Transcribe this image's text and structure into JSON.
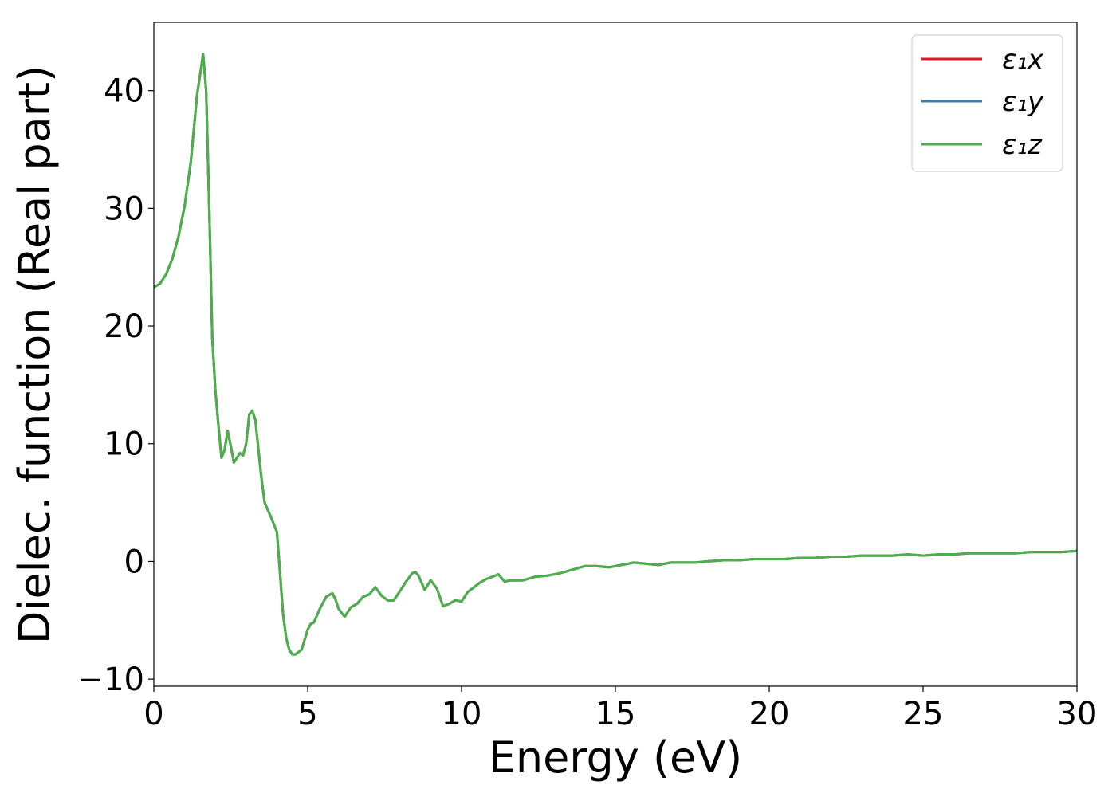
{
  "chart_data": {
    "type": "line",
    "title": "",
    "xlabel": "Energy (eV)",
    "ylabel": "Dielec. function (Real part)",
    "xlim": [
      0,
      30
    ],
    "ylim": [
      -10.6,
      45.8
    ],
    "xticks": [
      0,
      5,
      10,
      15,
      20,
      25,
      30
    ],
    "xtick_labels": [
      "0",
      "5",
      "10",
      "15",
      "20",
      "25",
      "30"
    ],
    "yticks": [
      -10,
      0,
      10,
      20,
      30,
      40
    ],
    "ytick_labels": [
      "−10",
      "0",
      "10",
      "20",
      "30",
      "40"
    ],
    "grid": false,
    "legend_position": "top-right",
    "x": [
      0,
      0.2,
      0.4,
      0.6,
      0.8,
      1.0,
      1.2,
      1.4,
      1.6,
      1.7,
      1.8,
      1.9,
      2.0,
      2.1,
      2.2,
      2.3,
      2.4,
      2.5,
      2.6,
      2.7,
      2.8,
      2.9,
      3.0,
      3.1,
      3.2,
      3.3,
      3.4,
      3.5,
      3.6,
      3.8,
      4.0,
      4.1,
      4.2,
      4.3,
      4.4,
      4.5,
      4.6,
      4.8,
      5.0,
      5.1,
      5.2,
      5.4,
      5.6,
      5.8,
      5.9,
      6.0,
      6.2,
      6.4,
      6.6,
      6.8,
      7.0,
      7.2,
      7.4,
      7.6,
      7.8,
      8.0,
      8.2,
      8.4,
      8.5,
      8.6,
      8.8,
      9.0,
      9.2,
      9.4,
      9.6,
      9.8,
      10.0,
      10.2,
      10.4,
      10.6,
      10.8,
      11.0,
      11.2,
      11.4,
      11.6,
      12.0,
      12.4,
      12.8,
      13.2,
      13.6,
      14.0,
      14.4,
      14.8,
      15.2,
      15.6,
      16.0,
      16.4,
      16.8,
      17.2,
      17.6,
      18.0,
      18.5,
      19.0,
      19.5,
      20.0,
      20.5,
      21.0,
      21.5,
      22.0,
      22.5,
      23.0,
      23.5,
      24.0,
      24.5,
      25.0,
      25.5,
      26.0,
      26.5,
      27.0,
      27.5,
      28.0,
      28.5,
      29.0,
      29.5,
      30.0
    ],
    "series": [
      {
        "name": "ε₁x",
        "color": "#e41a1c",
        "values": [
          23.3,
          23.6,
          24.4,
          25.7,
          27.6,
          30.2,
          33.9,
          39.5,
          43.1,
          40.0,
          30.0,
          19.0,
          14.5,
          11.5,
          8.8,
          9.5,
          11.1,
          9.8,
          8.4,
          8.8,
          9.2,
          9.0,
          10.0,
          12.5,
          12.8,
          12.0,
          9.5,
          7.0,
          5.0,
          3.8,
          2.5,
          -1.0,
          -4.5,
          -6.5,
          -7.5,
          -7.9,
          -7.9,
          -7.5,
          -5.8,
          -5.3,
          -5.2,
          -4.0,
          -3.0,
          -2.7,
          -3.2,
          -4.0,
          -4.7,
          -3.9,
          -3.6,
          -3.0,
          -2.8,
          -2.2,
          -2.9,
          -3.3,
          -3.3,
          -2.5,
          -1.7,
          -1.0,
          -0.9,
          -1.2,
          -2.4,
          -1.6,
          -2.3,
          -3.8,
          -3.6,
          -3.3,
          -3.4,
          -2.6,
          -2.2,
          -1.8,
          -1.5,
          -1.3,
          -1.1,
          -1.7,
          -1.6,
          -1.6,
          -1.3,
          -1.2,
          -1.0,
          -0.7,
          -0.4,
          -0.4,
          -0.5,
          -0.3,
          -0.1,
          -0.2,
          -0.3,
          -0.1,
          -0.1,
          -0.1,
          0.0,
          0.1,
          0.1,
          0.2,
          0.2,
          0.2,
          0.3,
          0.3,
          0.4,
          0.4,
          0.5,
          0.5,
          0.5,
          0.6,
          0.5,
          0.6,
          0.6,
          0.7,
          0.7,
          0.7,
          0.7,
          0.8,
          0.8,
          0.8,
          0.9
        ]
      },
      {
        "name": "ε₁y",
        "color": "#377eb8",
        "values": [
          23.3,
          23.6,
          24.4,
          25.7,
          27.6,
          30.2,
          33.9,
          39.5,
          43.1,
          40.0,
          30.0,
          19.0,
          14.5,
          11.5,
          8.8,
          9.5,
          11.1,
          9.8,
          8.4,
          8.8,
          9.2,
          9.0,
          10.0,
          12.5,
          12.8,
          12.0,
          9.5,
          7.0,
          5.0,
          3.8,
          2.5,
          -1.0,
          -4.5,
          -6.5,
          -7.5,
          -7.9,
          -7.9,
          -7.5,
          -5.8,
          -5.3,
          -5.2,
          -4.0,
          -3.0,
          -2.7,
          -3.2,
          -4.0,
          -4.7,
          -3.9,
          -3.6,
          -3.0,
          -2.8,
          -2.2,
          -2.9,
          -3.3,
          -3.3,
          -2.5,
          -1.7,
          -1.0,
          -0.9,
          -1.2,
          -2.4,
          -1.6,
          -2.3,
          -3.8,
          -3.6,
          -3.3,
          -3.4,
          -2.6,
          -2.2,
          -1.8,
          -1.5,
          -1.3,
          -1.1,
          -1.7,
          -1.6,
          -1.6,
          -1.3,
          -1.2,
          -1.0,
          -0.7,
          -0.4,
          -0.4,
          -0.5,
          -0.3,
          -0.1,
          -0.2,
          -0.3,
          -0.1,
          -0.1,
          -0.1,
          0.0,
          0.1,
          0.1,
          0.2,
          0.2,
          0.2,
          0.3,
          0.3,
          0.4,
          0.4,
          0.5,
          0.5,
          0.5,
          0.6,
          0.5,
          0.6,
          0.6,
          0.7,
          0.7,
          0.7,
          0.7,
          0.8,
          0.8,
          0.8,
          0.9
        ]
      },
      {
        "name": "ε₁z",
        "color": "#4daf4a",
        "values": [
          23.3,
          23.6,
          24.4,
          25.7,
          27.6,
          30.2,
          33.9,
          39.5,
          43.1,
          40.0,
          30.0,
          19.0,
          14.5,
          11.5,
          8.8,
          9.5,
          11.1,
          9.8,
          8.4,
          8.8,
          9.2,
          9.0,
          10.0,
          12.5,
          12.8,
          12.0,
          9.5,
          7.0,
          5.0,
          3.8,
          2.5,
          -1.0,
          -4.5,
          -6.5,
          -7.5,
          -7.9,
          -7.9,
          -7.5,
          -5.8,
          -5.3,
          -5.2,
          -4.0,
          -3.0,
          -2.7,
          -3.2,
          -4.0,
          -4.7,
          -3.9,
          -3.6,
          -3.0,
          -2.8,
          -2.2,
          -2.9,
          -3.3,
          -3.3,
          -2.5,
          -1.7,
          -1.0,
          -0.9,
          -1.2,
          -2.4,
          -1.6,
          -2.3,
          -3.8,
          -3.6,
          -3.3,
          -3.4,
          -2.6,
          -2.2,
          -1.8,
          -1.5,
          -1.3,
          -1.1,
          -1.7,
          -1.6,
          -1.6,
          -1.3,
          -1.2,
          -1.0,
          -0.7,
          -0.4,
          -0.4,
          -0.5,
          -0.3,
          -0.1,
          -0.2,
          -0.3,
          -0.1,
          -0.1,
          -0.1,
          0.0,
          0.1,
          0.1,
          0.2,
          0.2,
          0.2,
          0.3,
          0.3,
          0.4,
          0.4,
          0.5,
          0.5,
          0.5,
          0.6,
          0.5,
          0.6,
          0.6,
          0.7,
          0.7,
          0.7,
          0.7,
          0.8,
          0.8,
          0.8,
          0.9
        ]
      }
    ]
  }
}
